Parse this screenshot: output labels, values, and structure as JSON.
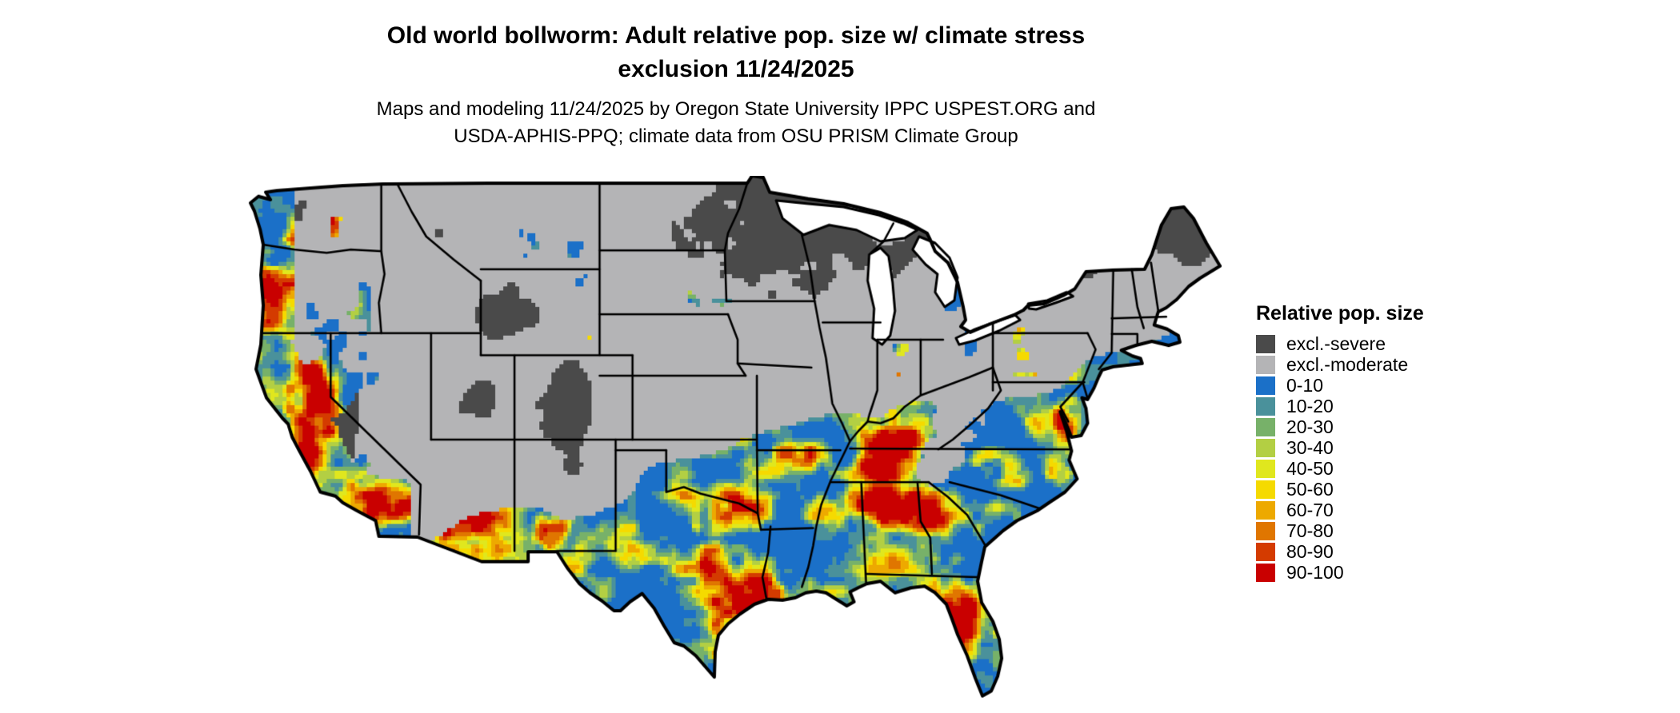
{
  "header": {
    "title_line1": "Old world bollworm: Adult relative pop. size w/ climate stress",
    "title_line2": "exclusion 11/24/2025",
    "subtitle_line1": "Maps and modeling 11/24/2025 by Oregon State University IPPC USPEST.ORG and",
    "subtitle_line2": "USDA-APHIS-PPQ; climate data from OSU PRISM Climate Group"
  },
  "map": {
    "region": "Contiguous United States",
    "border_color": "#000000",
    "water_color": "#ffffff"
  },
  "legend": {
    "title": "Relative pop. size",
    "items": [
      {
        "label": "excl.-severe",
        "color": "#4a4a4a"
      },
      {
        "label": "excl.-moderate",
        "color": "#b4b4b6"
      },
      {
        "label": "0-10",
        "color": "#1b70c8"
      },
      {
        "label": "10-20",
        "color": "#4a919b"
      },
      {
        "label": "20-30",
        "color": "#77b169"
      },
      {
        "label": "30-40",
        "color": "#b3cf43"
      },
      {
        "label": "40-50",
        "color": "#e0e71e"
      },
      {
        "label": "50-60",
        "color": "#f5da00"
      },
      {
        "label": "60-70",
        "color": "#eda900"
      },
      {
        "label": "70-80",
        "color": "#e07600"
      },
      {
        "label": "80-90",
        "color": "#d43b00"
      },
      {
        "label": "90-100",
        "color": "#c90000"
      }
    ]
  }
}
